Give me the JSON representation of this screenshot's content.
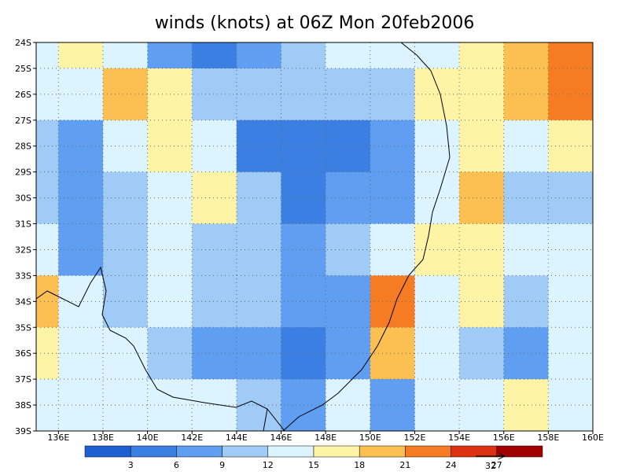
{
  "chart_data": {
    "type": "map",
    "title": "winds (knots) at 06Z Mon 20feb2006",
    "xlim": [
      135,
      160
    ],
    "ylim": [
      -39,
      -24
    ],
    "xticks": [
      {
        "value": 136,
        "label": "136E"
      },
      {
        "value": 138,
        "label": "138E"
      },
      {
        "value": 140,
        "label": "140E"
      },
      {
        "value": 142,
        "label": "142E"
      },
      {
        "value": 144,
        "label": "144E"
      },
      {
        "value": 146,
        "label": "146E"
      },
      {
        "value": 148,
        "label": "148E"
      },
      {
        "value": 150,
        "label": "150E"
      },
      {
        "value": 152,
        "label": "152E"
      },
      {
        "value": 154,
        "label": "154E"
      },
      {
        "value": 156,
        "label": "156E"
      },
      {
        "value": 158,
        "label": "158E"
      },
      {
        "value": 160,
        "label": "160E"
      }
    ],
    "yticks": [
      {
        "value": -24,
        "label": "24S"
      },
      {
        "value": -25,
        "label": "25S"
      },
      {
        "value": -26,
        "label": "26S"
      },
      {
        "value": -27,
        "label": "27S"
      },
      {
        "value": -28,
        "label": "28S"
      },
      {
        "value": -29,
        "label": "29S"
      },
      {
        "value": -30,
        "label": "30S"
      },
      {
        "value": -31,
        "label": "31S"
      },
      {
        "value": -32,
        "label": "32S"
      },
      {
        "value": -33,
        "label": "33S"
      },
      {
        "value": -34,
        "label": "34S"
      },
      {
        "value": -35,
        "label": "35S"
      },
      {
        "value": -36,
        "label": "36S"
      },
      {
        "value": -37,
        "label": "37S"
      },
      {
        "value": -38,
        "label": "38S"
      },
      {
        "value": -39,
        "label": "39S"
      }
    ],
    "grid": true,
    "levels": [
      3,
      6,
      9,
      12,
      15,
      18,
      21,
      24,
      27
    ],
    "colors": [
      "#1e5fd2",
      "#3b7fe2",
      "#5f9ef0",
      "#a0cbf6",
      "#dcf4ff",
      "#fff4a6",
      "#fcbf52",
      "#f57c22",
      "#dd3212",
      "#a10000"
    ],
    "field_lon": [
      135,
      137,
      139,
      141,
      143,
      145,
      147,
      149,
      151,
      153,
      155,
      157,
      159
    ],
    "field_lat": [
      -24,
      -26,
      -28,
      -30,
      -32,
      -34,
      -36,
      -38
    ],
    "speed": [
      [
        14,
        17,
        12,
        8,
        5,
        8,
        10,
        12,
        12,
        14,
        16,
        20,
        22
      ],
      [
        14,
        14,
        18,
        16,
        10,
        9,
        9,
        9,
        11,
        15,
        17,
        18,
        22
      ],
      [
        10,
        8,
        14,
        16,
        12,
        5,
        4,
        5,
        7,
        14,
        15,
        14,
        16
      ],
      [
        9,
        6,
        11,
        14,
        16,
        10,
        5,
        6,
        6,
        13,
        18,
        11,
        10
      ],
      [
        13,
        8,
        11,
        13,
        11,
        10,
        8,
        9,
        12,
        16,
        17,
        13,
        12
      ],
      [
        20,
        14,
        10,
        12,
        9,
        9,
        6,
        8,
        23,
        14,
        17,
        10,
        12
      ],
      [
        15,
        13,
        12,
        10,
        8,
        7,
        5,
        6,
        18,
        12,
        11,
        8,
        14
      ],
      [
        14,
        13,
        14,
        12,
        12,
        10,
        8,
        13,
        7,
        14,
        12,
        16,
        14
      ]
    ],
    "reference_vector": 32
  }
}
